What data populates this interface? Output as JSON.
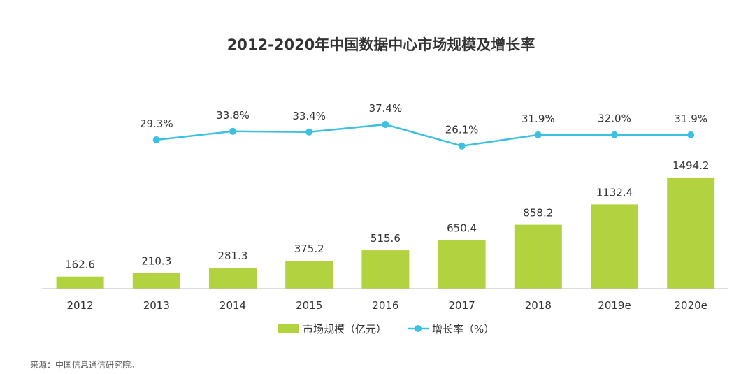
{
  "chart_data": {
    "type": "bar",
    "title": "2012-2020年中国数据中心市场规模及增长率",
    "categories": [
      "2012",
      "2013",
      "2014",
      "2015",
      "2016",
      "2017",
      "2018",
      "2019e",
      "2020e"
    ],
    "series": [
      {
        "name": "市场规模（亿元）",
        "type": "bar",
        "values": [
          162.6,
          210.3,
          281.3,
          375.2,
          515.6,
          650.4,
          858.2,
          1132.4,
          1494.2
        ],
        "labels": [
          "162.6",
          "210.3",
          "281.3",
          "375.2",
          "515.6",
          "650.4",
          "858.2",
          "1132.4",
          "1494.2"
        ],
        "color": "#b3d23f"
      },
      {
        "name": "增长率（%）",
        "type": "line",
        "values": [
          null,
          29.3,
          33.8,
          33.4,
          37.4,
          26.1,
          31.9,
          32.0,
          31.9
        ],
        "labels": [
          "",
          "29.3%",
          "33.8%",
          "33.4%",
          "37.4%",
          "26.1%",
          "31.9%",
          "32.0%",
          "31.9%"
        ],
        "color": "#3cc1e2"
      }
    ],
    "xlabel": "",
    "ylabel": "",
    "legend_position": "bottom",
    "grid": false
  },
  "source_note": "来源：中国信息通信研究院。"
}
